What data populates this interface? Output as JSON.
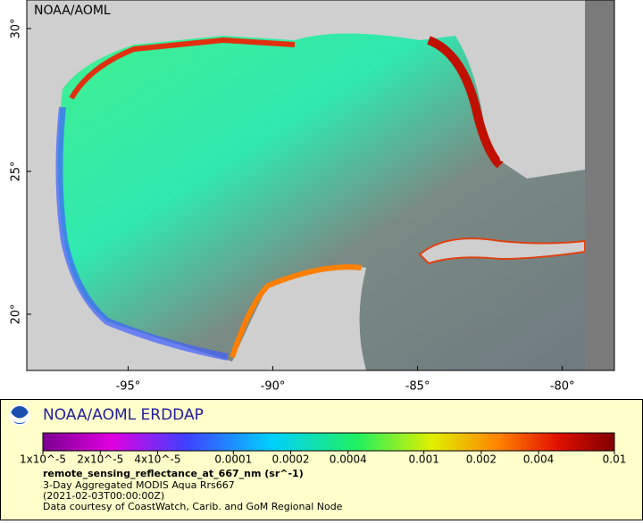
{
  "map": {
    "watermark": "NOAA/AOML",
    "lat_range": [
      18.03,
      31
    ],
    "lon_range": [
      -98.5,
      -78.2
    ],
    "lat_ticks": [
      {
        "value": 30,
        "label": "30°"
      },
      {
        "value": 25,
        "label": "25°"
      },
      {
        "value": 20,
        "label": "20°"
      }
    ],
    "lon_ticks": [
      {
        "value": -95,
        "label": "-95°"
      },
      {
        "value": -90,
        "label": "-90°"
      },
      {
        "value": -85,
        "label": "-85°"
      },
      {
        "value": -80,
        "label": "-80°"
      }
    ]
  },
  "legend": {
    "title": "NOAA/AOML ERDDAP",
    "colorbar": {
      "scale": "log",
      "range": [
        1e-05,
        0.01
      ],
      "ticks": [
        {
          "value": 1e-05,
          "label": "1x10^-5"
        },
        {
          "value": 2e-05,
          "label": "2x10^-5"
        },
        {
          "value": 4e-05,
          "label": "4x10^-5"
        },
        {
          "value": 0.0001,
          "label": "0.0001"
        },
        {
          "value": 0.0002,
          "label": "0.0002"
        },
        {
          "value": 0.0004,
          "label": "0.0004"
        },
        {
          "value": 0.001,
          "label": "0.001"
        },
        {
          "value": 0.002,
          "label": "0.002"
        },
        {
          "value": 0.004,
          "label": "0.004"
        },
        {
          "value": 0.01,
          "label": "0.01"
        }
      ]
    },
    "variable": "remote_sensing_reflectance_at_667_nm (sr^-1)",
    "lines": [
      "3-Day Aggregated MODIS Aqua Rrs667",
      "(2021-02-03T00:00:00Z)",
      "Data courtesy of CoastWatch, Carib. and GoM Regional Node"
    ]
  }
}
